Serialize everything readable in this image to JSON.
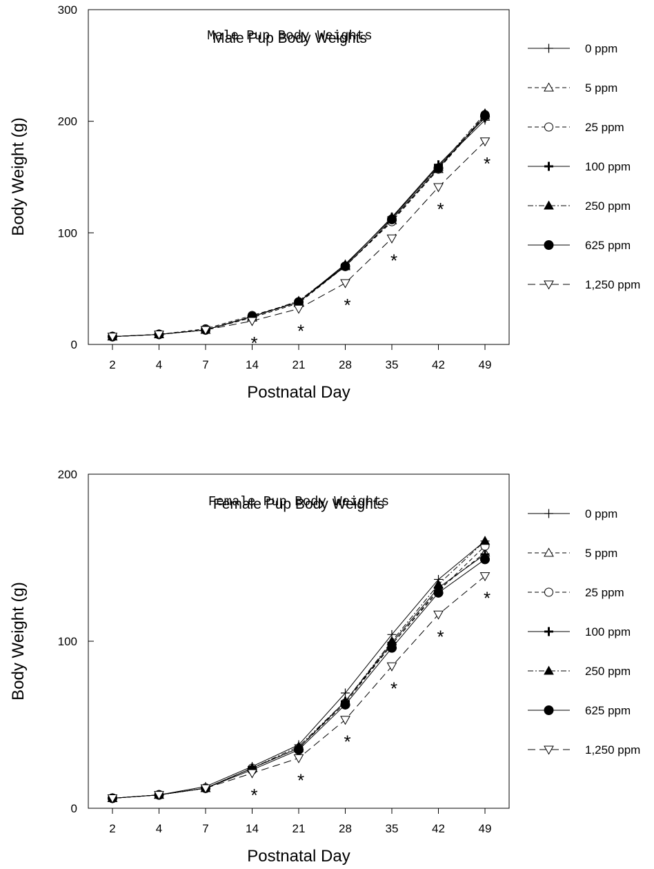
{
  "legend_entries": [
    "0 ppm",
    "5 ppm",
    "25 ppm",
    "100 ppm",
    "250 ppm",
    "625 ppm",
    "1,250 ppm"
  ],
  "chart_data": [
    {
      "type": "line",
      "title": "Male Pup Body Weights",
      "xlabel": "Postnatal Day",
      "ylabel": "Body Weight (g)",
      "categories": [
        "2",
        "4",
        "7",
        "14",
        "21",
        "28",
        "35",
        "42",
        "49"
      ],
      "ylim": [
        0,
        300
      ],
      "yticks": [
        "0",
        "100",
        "200",
        "300"
      ],
      "grid": false,
      "legend_position": "right",
      "series": [
        {
          "name": "0 ppm",
          "marker": "plus-thin",
          "dash": "solid",
          "values": [
            7,
            9,
            13,
            25,
            38,
            72,
            113,
            160,
            201
          ]
        },
        {
          "name": "5 ppm",
          "marker": "triangle-open",
          "dash": "dashed",
          "values": [
            7,
            9,
            13,
            24,
            37,
            70,
            111,
            157,
            204
          ]
        },
        {
          "name": "25 ppm",
          "marker": "circle-open",
          "dash": "dashed",
          "values": [
            7,
            9,
            14,
            26,
            38,
            70,
            110,
            157,
            206
          ]
        },
        {
          "name": "100 ppm",
          "marker": "plus-bold",
          "dash": "solid",
          "values": [
            7,
            9,
            13,
            25,
            38,
            71,
            114,
            161,
            203
          ]
        },
        {
          "name": "250 ppm",
          "marker": "triangle-filled",
          "dash": "dashdot",
          "values": [
            7,
            9,
            13,
            25,
            39,
            71,
            114,
            159,
            207
          ]
        },
        {
          "name": "625 ppm",
          "marker": "circle-filled",
          "dash": "solid",
          "values": [
            7,
            9,
            13,
            25,
            38,
            70,
            112,
            158,
            205
          ]
        },
        {
          "name": "1,250 ppm",
          "marker": "triangle-down-open",
          "dash": "longdash",
          "values": [
            7,
            9,
            13,
            21,
            32,
            55,
            95,
            141,
            182
          ]
        }
      ],
      "annotations": {
        "symbol": "*",
        "categories": [
          "14",
          "21",
          "28",
          "35",
          "42",
          "49"
        ]
      }
    },
    {
      "type": "line",
      "title": "Female Pup Body Weights",
      "xlabel": "Postnatal Day",
      "ylabel": "Body Weight (g)",
      "categories": [
        "2",
        "4",
        "7",
        "14",
        "21",
        "28",
        "35",
        "42",
        "49"
      ],
      "ylim": [
        0,
        200
      ],
      "yticks": [
        "0",
        "100",
        "200"
      ],
      "grid": false,
      "legend_position": "right",
      "series": [
        {
          "name": "0 ppm",
          "marker": "plus-thin",
          "dash": "solid",
          "values": [
            6,
            8,
            13,
            25,
            38,
            69,
            104,
            137,
            160
          ]
        },
        {
          "name": "5 ppm",
          "marker": "triangle-open",
          "dash": "dashed",
          "values": [
            6,
            8,
            12,
            24,
            36,
            64,
            98,
            131,
            153
          ]
        },
        {
          "name": "25 ppm",
          "marker": "circle-open",
          "dash": "dashed",
          "values": [
            6,
            8,
            12,
            24,
            36,
            63,
            98,
            130,
            157
          ]
        },
        {
          "name": "100 ppm",
          "marker": "plus-bold",
          "dash": "solid",
          "values": [
            6,
            8,
            12,
            24,
            36,
            64,
            99,
            132,
            152
          ]
        },
        {
          "name": "250 ppm",
          "marker": "triangle-filled",
          "dash": "dashdot",
          "values": [
            6,
            8,
            12,
            24,
            37,
            64,
            100,
            134,
            160
          ]
        },
        {
          "name": "625 ppm",
          "marker": "circle-filled",
          "dash": "solid",
          "values": [
            6,
            8,
            12,
            23,
            35,
            62,
            96,
            129,
            149
          ]
        },
        {
          "name": "1,250 ppm",
          "marker": "triangle-down-open",
          "dash": "longdash",
          "values": [
            6,
            8,
            12,
            21,
            30,
            53,
            85,
            116,
            139
          ]
        }
      ],
      "annotations": {
        "symbol": "*",
        "categories": [
          "14",
          "21",
          "28",
          "35",
          "42",
          "49"
        ]
      }
    }
  ]
}
